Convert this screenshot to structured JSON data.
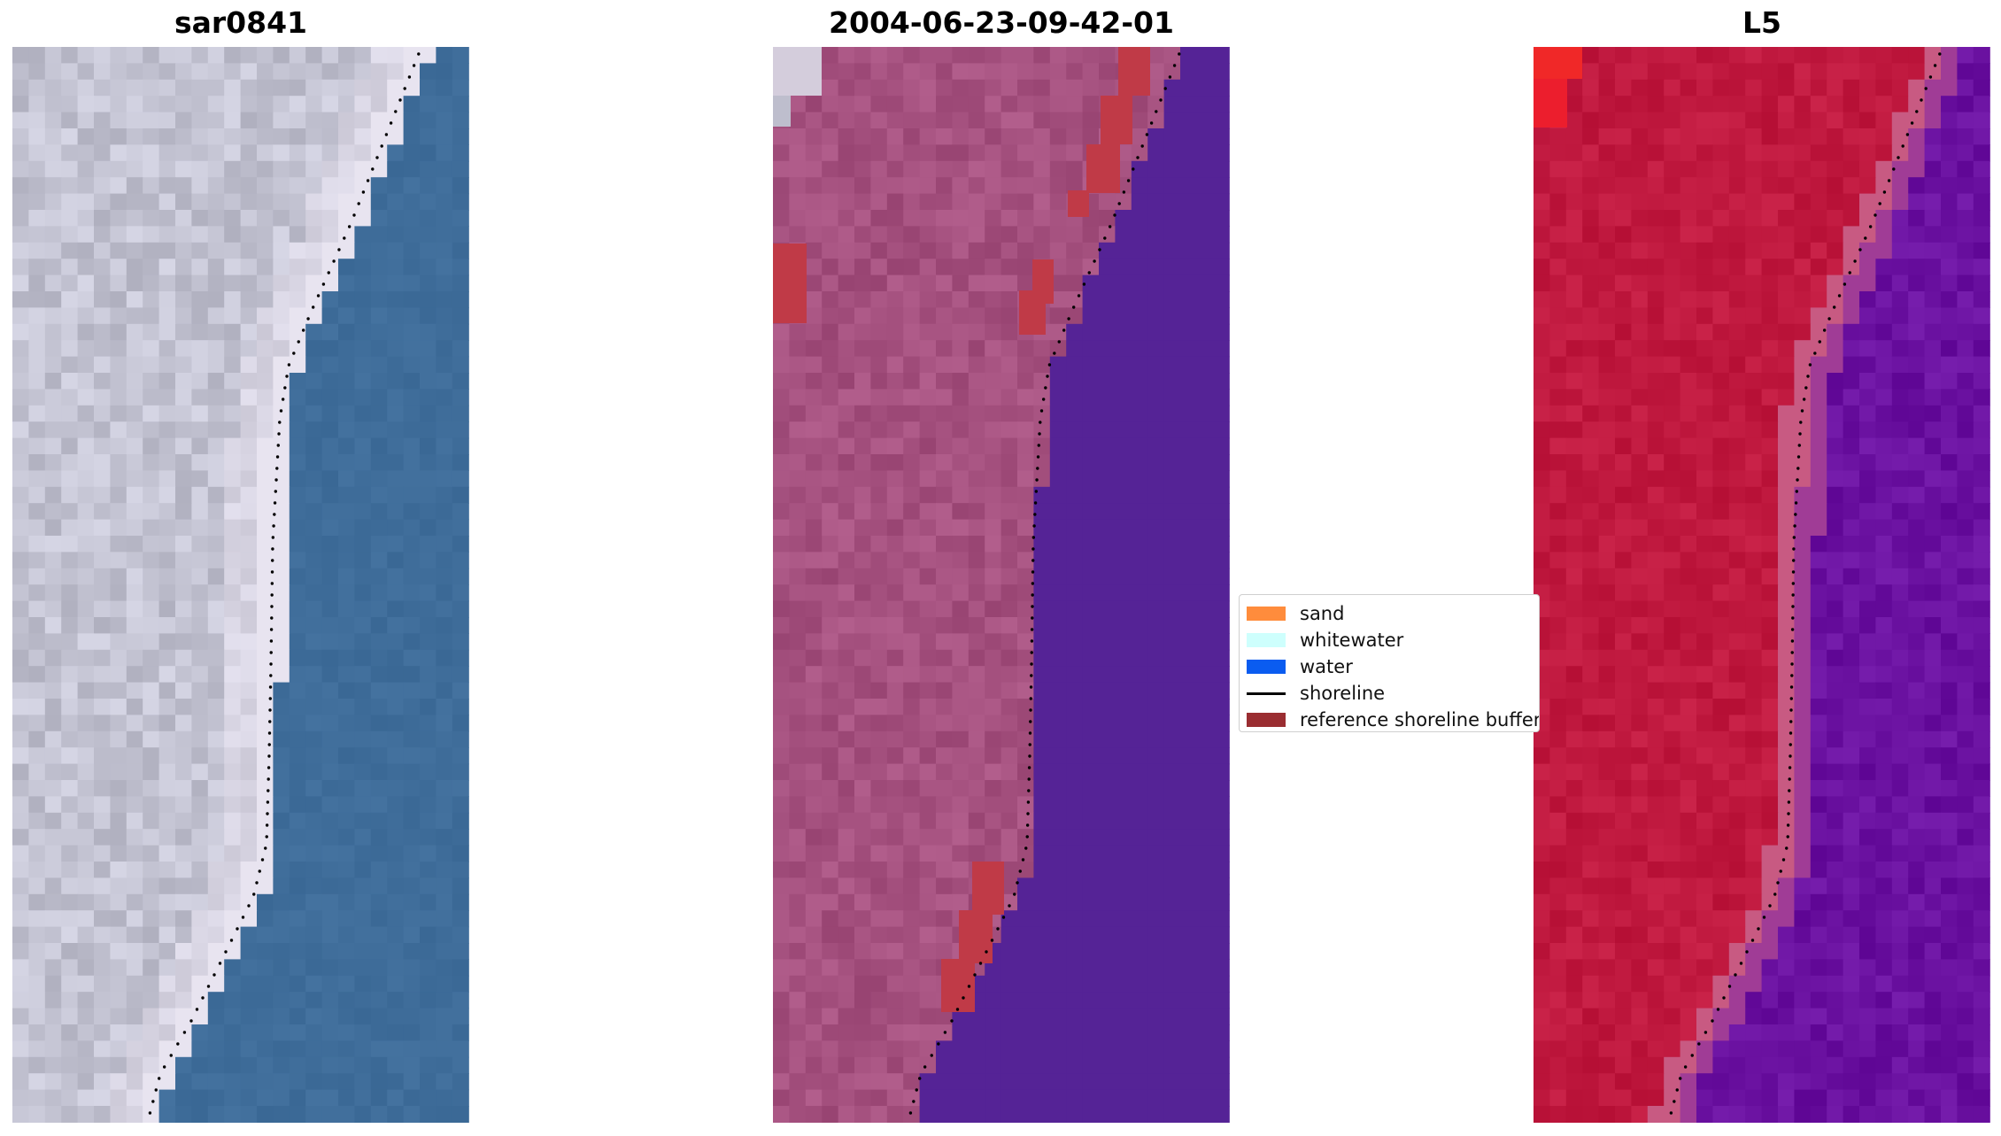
{
  "panels": [
    {
      "title": "sar0841",
      "kind": "rgb"
    },
    {
      "title": "2004-06-23-09-42-01",
      "kind": "classified"
    },
    {
      "title": "L5",
      "kind": "index"
    }
  ],
  "legend": [
    {
      "label": "sand",
      "color": "#ff8c3c",
      "type": "patch"
    },
    {
      "label": "whitewater",
      "color": "#cefffd",
      "type": "patch"
    },
    {
      "label": "water",
      "color": "#0a5cf0",
      "type": "patch"
    },
    {
      "label": "shoreline",
      "color": "#000000",
      "type": "line"
    },
    {
      "label": "reference shoreline buffer",
      "color": "#9a2d31",
      "type": "patch"
    }
  ],
  "colors": {
    "rgb_sea": "#3f6d9a",
    "rgb_land": "#c3c3d2",
    "classified_land": "#a5517f",
    "classified_water": "#552396",
    "classified_buffer": "#c03a47",
    "index_land": "#c0193f",
    "index_water": "#6a11a0",
    "shoreline_dots": "#000000"
  }
}
